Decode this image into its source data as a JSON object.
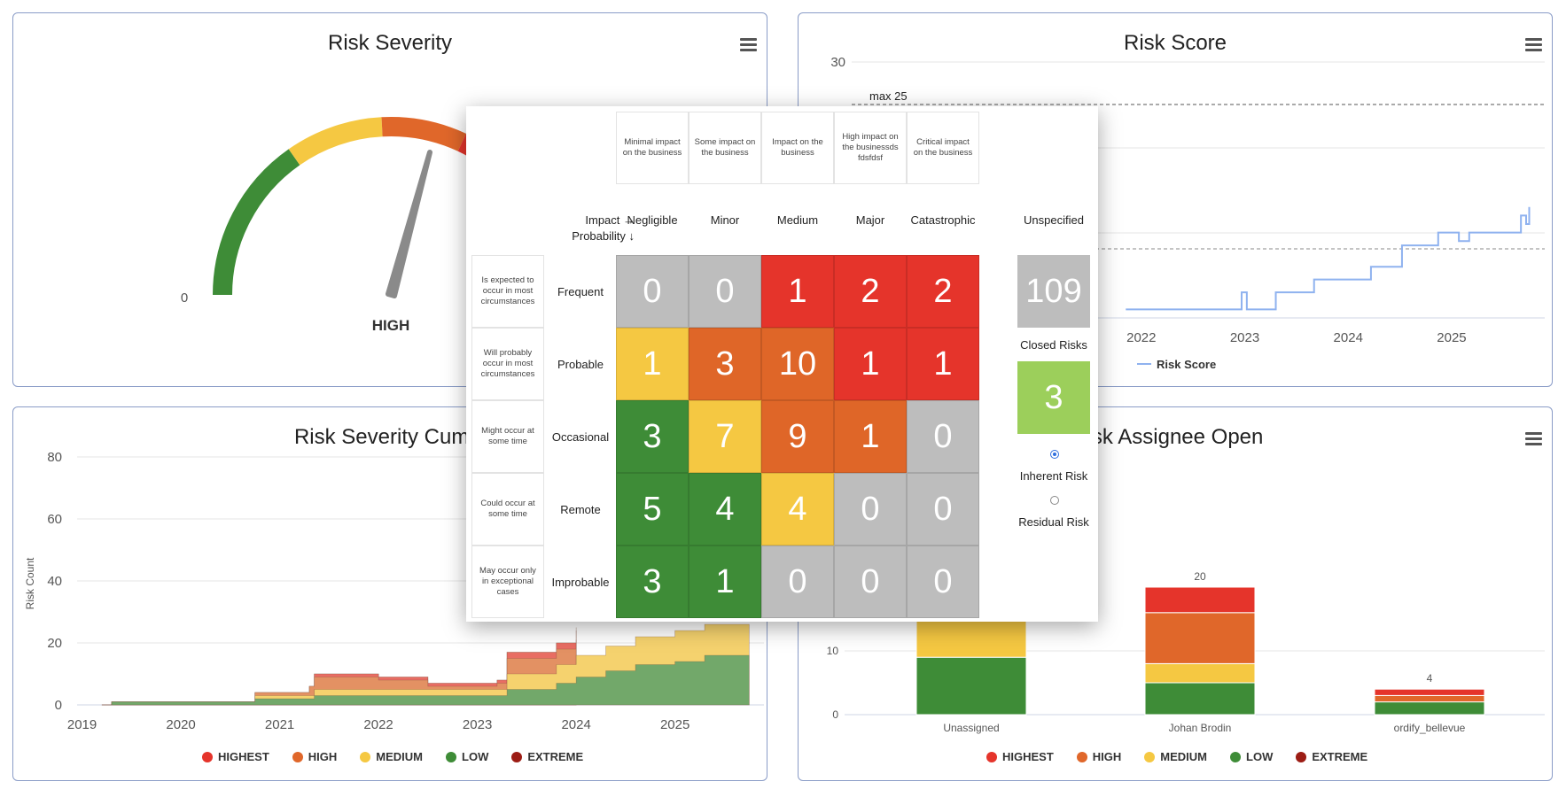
{
  "severity_panel": {
    "title": "Risk Severity",
    "gauge_min": "0",
    "gauge_value_label": "HIGH",
    "colors": {
      "low": "#3e8c37",
      "medium": "#f5c842",
      "high": "#e0672a",
      "highest": "#e5342b"
    }
  },
  "score_panel": {
    "title": "Risk Score",
    "max_label": "max 25",
    "legend_label": "Risk Score"
  },
  "cumulative_panel": {
    "title": "Risk Severity Cumul",
    "ylabel": "Risk Count"
  },
  "assignee_panel": {
    "title": "isk Assignee Open"
  },
  "legend": [
    {
      "label": "HIGHEST",
      "color": "#e5342b"
    },
    {
      "label": "HIGH",
      "color": "#e0672a"
    },
    {
      "label": "MEDIUM",
      "color": "#f5c842"
    },
    {
      "label": "LOW",
      "color": "#3e8c37"
    },
    {
      "label": "EXTREME",
      "color": "#9c1c14"
    }
  ],
  "chart_data": [
    {
      "type": "line",
      "title": "Risk Score",
      "x": [
        "2022",
        "2023",
        "2024",
        "2025"
      ],
      "ylim": [
        0,
        30
      ],
      "y_ticks_visible": [
        "30"
      ],
      "annotations": [
        "max 25"
      ],
      "series": [
        {
          "name": "Risk Score",
          "color": "#8fb2ef",
          "points": [
            [
              2021.85,
              1
            ],
            [
              2022.95,
              1
            ],
            [
              2022.97,
              3
            ],
            [
              2023.02,
              1
            ],
            [
              2023.28,
              1
            ],
            [
              2023.3,
              3
            ],
            [
              2023.65,
              3
            ],
            [
              2023.67,
              4.5
            ],
            [
              2024.2,
              4.5
            ],
            [
              2024.22,
              6
            ],
            [
              2024.5,
              6
            ],
            [
              2024.52,
              8.5
            ],
            [
              2024.85,
              8.5
            ],
            [
              2024.87,
              10
            ],
            [
              2025.05,
              10
            ],
            [
              2025.07,
              9
            ],
            [
              2025.15,
              9
            ],
            [
              2025.17,
              10
            ],
            [
              2025.65,
              10
            ],
            [
              2025.67,
              12
            ],
            [
              2025.72,
              11
            ],
            [
              2025.75,
              13
            ]
          ]
        }
      ]
    },
    {
      "type": "area",
      "title": "Risk Severity Cumulative",
      "x": [
        "2019",
        "2020",
        "2021",
        "2022",
        "2023",
        "2024",
        "2025"
      ],
      "ylabel": "Risk Count",
      "ylim": [
        0,
        80
      ],
      "y_ticks": [
        0,
        20,
        40,
        60,
        80
      ],
      "series": [
        {
          "name": "LOW",
          "color": "#72a86a",
          "points": [
            [
              2019.2,
              0
            ],
            [
              2019.3,
              1
            ],
            [
              2020.7,
              1
            ],
            [
              2020.75,
              2
            ],
            [
              2021.3,
              2
            ],
            [
              2021.35,
              3
            ],
            [
              2022.5,
              3
            ],
            [
              2023.2,
              3
            ],
            [
              2023.3,
              5
            ],
            [
              2023.8,
              7
            ],
            [
              2024.0,
              9
            ],
            [
              2024.3,
              11
            ],
            [
              2024.6,
              13
            ],
            [
              2025.0,
              14
            ],
            [
              2025.3,
              16
            ],
            [
              2025.75,
              16
            ]
          ]
        },
        {
          "name": "MEDIUM",
          "color": "#f5d26e",
          "points": [
            [
              2019.2,
              0
            ],
            [
              2019.3,
              1
            ],
            [
              2020.7,
              1
            ],
            [
              2020.75,
              3
            ],
            [
              2021.3,
              3
            ],
            [
              2021.35,
              5
            ],
            [
              2022.5,
              5
            ],
            [
              2023.2,
              5
            ],
            [
              2023.3,
              10
            ],
            [
              2023.8,
              13
            ],
            [
              2024.0,
              16
            ],
            [
              2024.3,
              19
            ],
            [
              2024.6,
              22
            ],
            [
              2025.0,
              24
            ],
            [
              2025.3,
              26
            ],
            [
              2025.75,
              26
            ]
          ]
        },
        {
          "name": "HIGH",
          "color": "#e39163",
          "points": [
            [
              2019.2,
              0
            ],
            [
              2019.3,
              1
            ],
            [
              2020.7,
              1
            ],
            [
              2020.75,
              4
            ],
            [
              2021.3,
              6
            ],
            [
              2021.35,
              9
            ],
            [
              2022.0,
              8
            ],
            [
              2022.5,
              6
            ],
            [
              2023.2,
              7
            ],
            [
              2023.3,
              15
            ],
            [
              2023.8,
              18
            ],
            [
              2024.0,
              21
            ]
          ]
        },
        {
          "name": "HIGHEST",
          "color": "#e86d63",
          "points": [
            [
              2019.2,
              0
            ],
            [
              2019.3,
              1
            ],
            [
              2020.7,
              1
            ],
            [
              2020.75,
              4
            ],
            [
              2021.3,
              6
            ],
            [
              2021.35,
              10
            ],
            [
              2022.0,
              9
            ],
            [
              2022.5,
              7
            ],
            [
              2023.2,
              8
            ],
            [
              2023.3,
              17
            ],
            [
              2023.8,
              20
            ],
            [
              2024.0,
              24
            ]
          ]
        },
        {
          "name": "EXTREME",
          "color": "#b5493f",
          "points": [
            [
              2019.2,
              0
            ],
            [
              2019.3,
              1
            ],
            [
              2020.7,
              1
            ],
            [
              2020.75,
              4
            ],
            [
              2021.3,
              6
            ],
            [
              2021.35,
              10
            ],
            [
              2022.0,
              9
            ],
            [
              2022.5,
              7
            ],
            [
              2023.2,
              8
            ],
            [
              2023.3,
              17
            ],
            [
              2023.8,
              20
            ],
            [
              2024.0,
              25
            ]
          ]
        }
      ]
    },
    {
      "type": "bar",
      "title": "Risk Assignee Open",
      "categories": [
        "Unassigned",
        "Johan Brodin",
        "ordify_bellevue"
      ],
      "y_ticks": [
        0,
        10
      ],
      "data_labels": [
        "",
        "20",
        "4"
      ],
      "series": [
        {
          "name": "LOW",
          "color": "#3e8c37",
          "values": [
            9,
            5,
            2
          ]
        },
        {
          "name": "MEDIUM",
          "color": "#f5c842",
          "values": [
            6,
            3,
            0
          ]
        },
        {
          "name": "HIGH",
          "color": "#e0672a",
          "values": [
            0,
            8,
            1
          ]
        },
        {
          "name": "HIGHEST",
          "color": "#e5342b",
          "values": [
            0,
            4,
            1
          ]
        }
      ]
    }
  ],
  "matrix": {
    "impact_descriptions": [
      "Minimal impact on the business",
      "Some impact on the business",
      "Impact on the business",
      "High impact on the businessds fdsfdsf",
      "Critical impact on the business"
    ],
    "axis_impact": "Impact →",
    "axis_probability": "Probability ↓",
    "impacts": [
      "Negligible",
      "Minor",
      "Medium",
      "Major",
      "Catastrophic"
    ],
    "probabilities": [
      "Frequent",
      "Probable",
      "Occasional",
      "Remote",
      "Improbable"
    ],
    "probability_descriptions": [
      "Is expected to occur in most circumstances",
      "Will probably occur in most circumstances",
      "Might occur at some time",
      "Could occur at some time",
      "May occur only in exceptional cases"
    ],
    "values": [
      [
        "0",
        "0",
        "1",
        "2",
        "2"
      ],
      [
        "1",
        "3",
        "10",
        "1",
        "1"
      ],
      [
        "3",
        "7",
        "9",
        "1",
        "0"
      ],
      [
        "5",
        "4",
        "4",
        "0",
        "0"
      ],
      [
        "3",
        "1",
        "0",
        "0",
        "0"
      ]
    ],
    "colors": [
      [
        "#bdbdbd",
        "#bdbdbd",
        "#e5342b",
        "#e5342b",
        "#e5342b"
      ],
      [
        "#f5c842",
        "#df6628",
        "#df6628",
        "#e5342b",
        "#e5342b"
      ],
      [
        "#3e8c37",
        "#f5c842",
        "#df6628",
        "#df6628",
        "#bdbdbd"
      ],
      [
        "#3e8c37",
        "#3e8c37",
        "#f5c842",
        "#bdbdbd",
        "#bdbdbd"
      ],
      [
        "#3e8c37",
        "#3e8c37",
        "#bdbdbd",
        "#bdbdbd",
        "#bdbdbd"
      ]
    ],
    "unspecified_label": "Unspecified",
    "unspecified_value": "109",
    "closed_label": "Closed Risks",
    "closed_value": "3",
    "closed_color": "#9ccf5b",
    "inherent_label": "Inherent Risk",
    "residual_label": "Residual Risk",
    "selected_mode": "Inherent Risk"
  }
}
